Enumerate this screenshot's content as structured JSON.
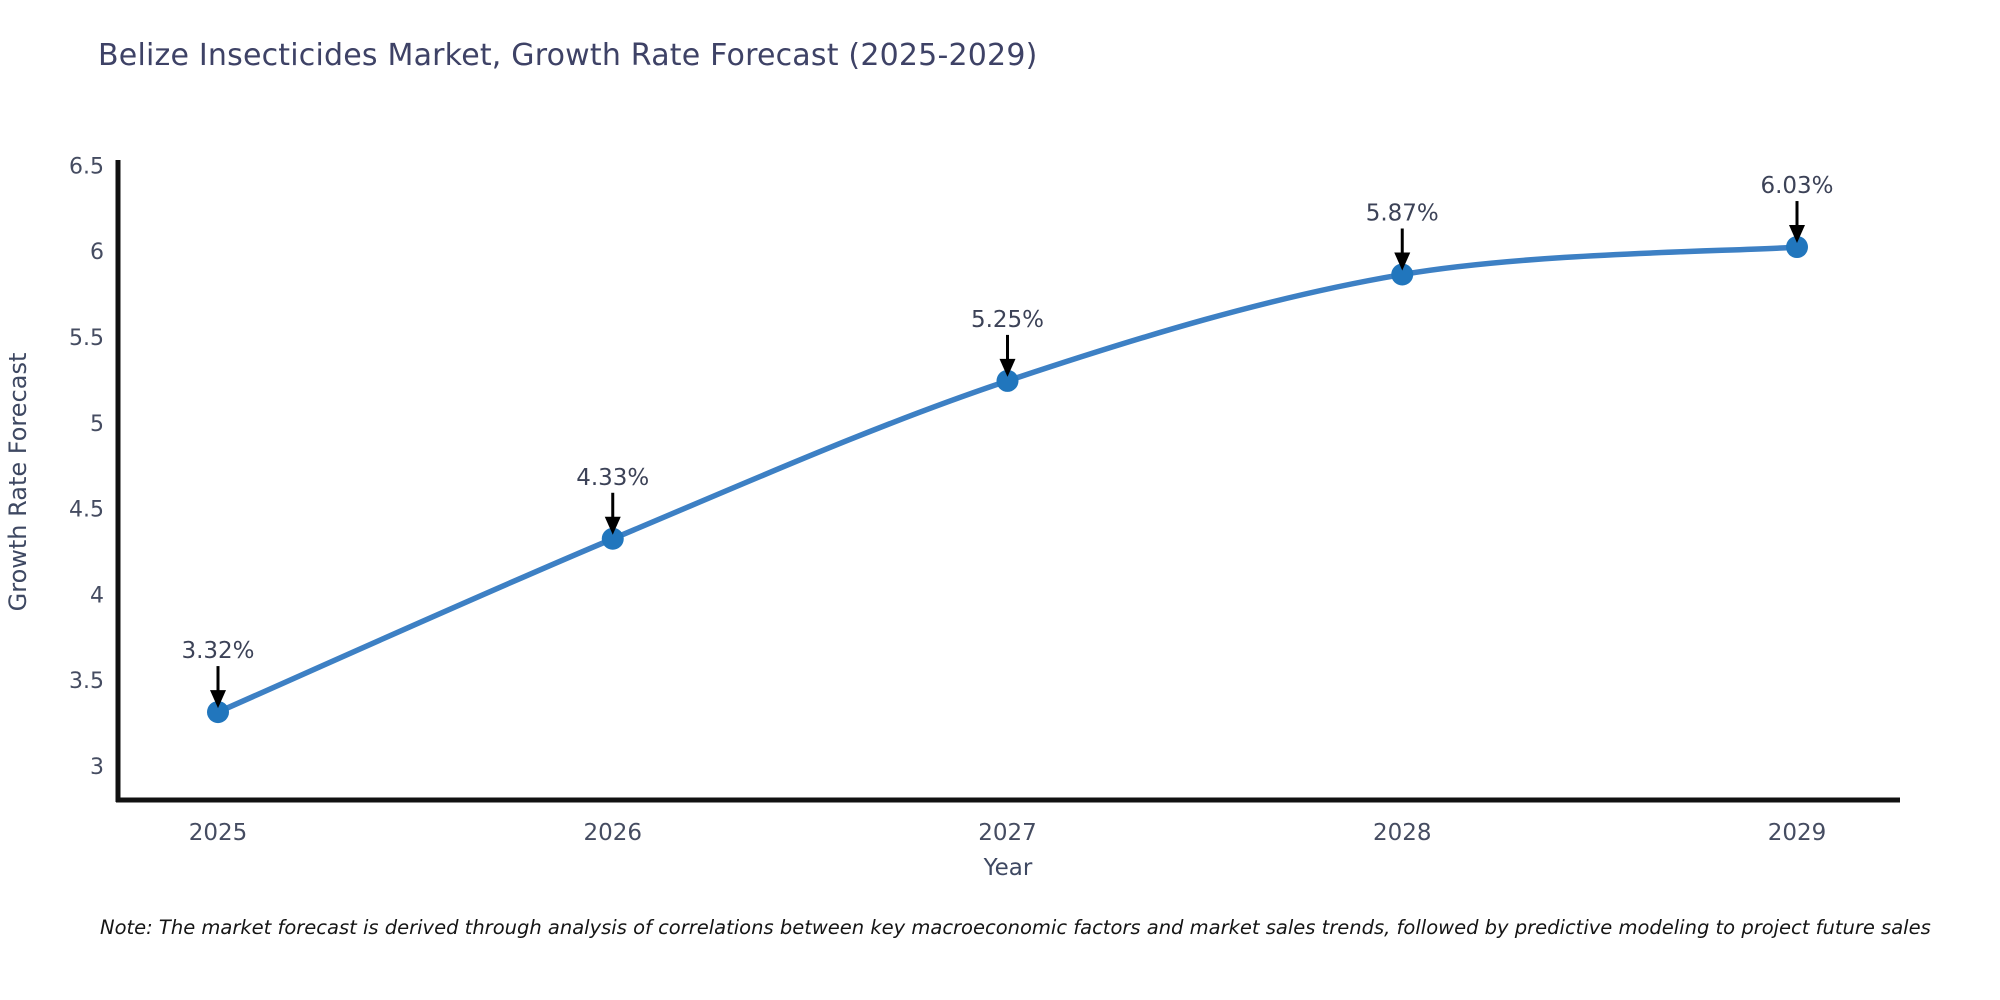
{
  "title": "Belize Insecticides Market, Growth Rate Forecast (2025-2029)",
  "note": "Note: The market forecast is derived through analysis of correlations between key macroeconomic factors and market sales trends, followed by predictive modeling to project future sales",
  "chart_data": {
    "type": "line",
    "title": "Belize Insecticides Market, Growth Rate Forecast (2025-2029)",
    "xlabel": "Year",
    "ylabel": "Growth Rate Forecast",
    "categories": [
      "2025",
      "2026",
      "2027",
      "2028",
      "2029"
    ],
    "values": [
      3.32,
      4.33,
      5.25,
      5.87,
      6.03
    ],
    "point_labels": [
      "3.32%",
      "4.33%",
      "5.25%",
      "5.87%",
      "6.03%"
    ],
    "yticks": [
      3,
      3.5,
      4,
      4.5,
      5,
      5.5,
      6,
      6.5
    ],
    "ylim": [
      2.8,
      6.55
    ],
    "grid": false,
    "legend": "none",
    "line_shape": "spline",
    "colors": {
      "line": "#3d80c4",
      "marker": "#2176bd",
      "axis": "#111111",
      "tick_text": "#454c61",
      "label_text": "#3c4257",
      "arrow": "#000000",
      "background": "#ffffff"
    }
  }
}
